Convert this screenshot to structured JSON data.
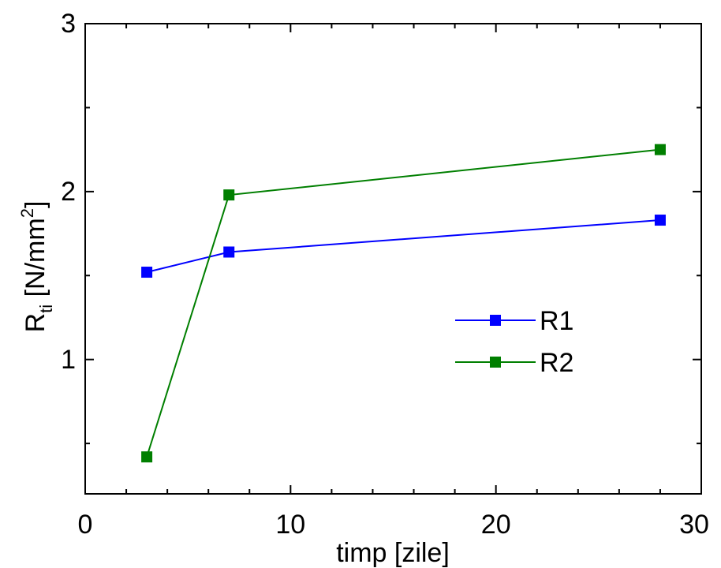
{
  "chart_data": {
    "type": "line",
    "x": [
      3,
      7,
      28
    ],
    "series": [
      {
        "name": "R1",
        "values": [
          1.52,
          1.64,
          1.83
        ],
        "color": "#0000ff"
      },
      {
        "name": "R2",
        "values": [
          0.42,
          1.98,
          2.25
        ],
        "color": "#007f00"
      }
    ],
    "xlabel": "timp [zile]",
    "ylabel": {
      "main": "R",
      "subscript": "ti",
      "unit_open": " [N/mm",
      "superscript": "2",
      "unit_close": "]"
    },
    "xlim": [
      0,
      30
    ],
    "ylim": [
      0.2,
      3
    ],
    "x_ticks": [
      "0",
      "10",
      "20",
      "30"
    ],
    "y_ticks": [
      "1",
      "2",
      "3"
    ],
    "x_tick_values": [
      0,
      10,
      20,
      30
    ],
    "y_tick_values": [
      1,
      2,
      3
    ],
    "x_minor_tick_values": [
      2,
      4,
      6,
      8,
      12,
      14,
      16,
      18,
      22,
      24,
      26,
      28
    ],
    "y_minor_tick_values": [
      0.5,
      1.5,
      2.5
    ],
    "grid": false,
    "legend": {
      "position": "center-right"
    },
    "marker": "square"
  }
}
